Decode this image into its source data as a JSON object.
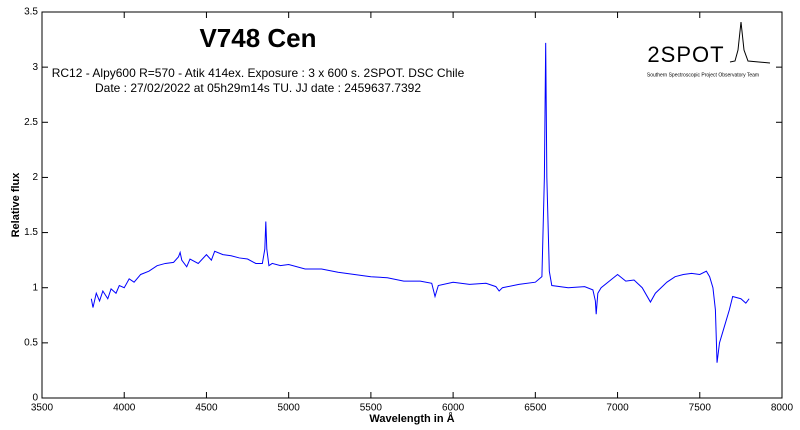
{
  "chart_data": {
    "type": "line",
    "title": "V748 Cen",
    "annotations": [
      "RC12 - Alpy600 R=570 - Atik 414ex. Exposure : 3 x 600 s. 2SPOT. DSC Chile",
      "Date : 27/02/2022 at 05h29m14s TU. JJ date : 2459637.7392"
    ],
    "logo": {
      "text": "2SPOT",
      "caption": "Southern Spectroscopic Project Observatory Team"
    },
    "x_label": "Wavelength in Å",
    "y_label": "Relative flux",
    "color": "#0000ff",
    "x": [
      3800,
      3810,
      3830,
      3850,
      3870,
      3900,
      3920,
      3950,
      3970,
      4000,
      4030,
      4060,
      4100,
      4150,
      4200,
      4250,
      4300,
      4330,
      4340,
      4350,
      4380,
      4400,
      4450,
      4500,
      4530,
      4550,
      4600,
      4650,
      4700,
      4750,
      4800,
      4840,
      4855,
      4861,
      4867,
      4880,
      4900,
      4950,
      5000,
      5100,
      5200,
      5300,
      5400,
      5500,
      5600,
      5700,
      5800,
      5870,
      5890,
      5910,
      6000,
      6100,
      6200,
      6260,
      6280,
      6300,
      6400,
      6500,
      6540,
      6555,
      6563,
      6570,
      6585,
      6600,
      6700,
      6800,
      6850,
      6865,
      6870,
      6880,
      6900,
      6950,
      7000,
      7050,
      7100,
      7150,
      7200,
      7230,
      7300,
      7350,
      7400,
      7450,
      7500,
      7540,
      7560,
      7580,
      7595,
      7605,
      7620,
      7650,
      7680,
      7700,
      7750,
      7780,
      7800
    ],
    "values": [
      0.9,
      0.82,
      0.95,
      0.88,
      0.97,
      0.9,
      0.99,
      0.95,
      1.02,
      1.0,
      1.08,
      1.05,
      1.12,
      1.15,
      1.2,
      1.22,
      1.23,
      1.28,
      1.32,
      1.25,
      1.19,
      1.26,
      1.22,
      1.3,
      1.25,
      1.33,
      1.3,
      1.29,
      1.27,
      1.26,
      1.22,
      1.22,
      1.35,
      1.6,
      1.35,
      1.2,
      1.22,
      1.2,
      1.21,
      1.17,
      1.17,
      1.14,
      1.12,
      1.1,
      1.09,
      1.06,
      1.06,
      1.04,
      0.92,
      1.02,
      1.05,
      1.03,
      1.04,
      1.01,
      0.97,
      1.0,
      1.03,
      1.05,
      1.1,
      2.0,
      3.22,
      2.0,
      1.15,
      1.02,
      1.0,
      1.01,
      0.98,
      0.88,
      0.76,
      0.95,
      1.0,
      1.06,
      1.12,
      1.06,
      1.07,
      1.0,
      0.87,
      0.95,
      1.05,
      1.1,
      1.12,
      1.13,
      1.12,
      1.15,
      1.1,
      1.0,
      0.8,
      0.32,
      0.5,
      0.65,
      0.8,
      0.92,
      0.9,
      0.86,
      0.9
    ],
    "xlim": [
      3500,
      8000
    ],
    "xticks": [
      3500,
      4000,
      4500,
      5000,
      5500,
      6000,
      6500,
      7000,
      7500,
      8000
    ],
    "ylim": [
      0,
      3.5
    ],
    "yticks": [
      0,
      0.5,
      1,
      1.5,
      2,
      2.5,
      3,
      3.5
    ]
  }
}
